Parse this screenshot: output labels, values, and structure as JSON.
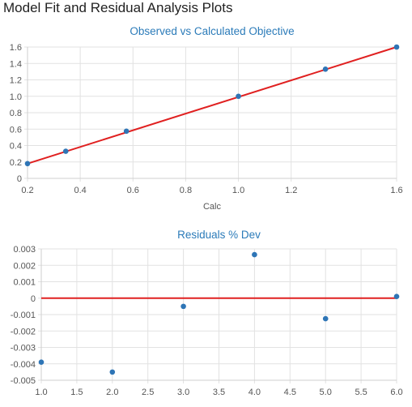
{
  "page_title": "Model Fit and Residual Analysis Plots",
  "chart_data": [
    {
      "type": "scatter",
      "title": "Observed vs Calculated Objective",
      "xlabel": "Calc",
      "ylabel": "",
      "xlim": [
        0.2,
        1.6
      ],
      "ylim": [
        0,
        1.6
      ],
      "x_ticks": [
        "0.2",
        "0.4",
        "0.6",
        "0.8",
        "1.0",
        "1.2",
        "1.6"
      ],
      "x_tick_values": [
        0.2,
        0.4,
        0.6,
        0.8,
        1.0,
        1.2,
        1.6
      ],
      "y_ticks": [
        "0",
        "0.2",
        "0.4",
        "0.6",
        "0.8",
        "1.0",
        "1.2",
        "1.4",
        "1.6"
      ],
      "y_tick_values": [
        0,
        0.2,
        0.4,
        0.6,
        0.8,
        1.0,
        1.2,
        1.4,
        1.6
      ],
      "grid": true,
      "points": [
        {
          "x": 0.2,
          "y": 0.18
        },
        {
          "x": 0.345,
          "y": 0.33
        },
        {
          "x": 0.575,
          "y": 0.575
        },
        {
          "x": 1.0,
          "y": 1.0
        },
        {
          "x": 1.33,
          "y": 1.33
        },
        {
          "x": 1.6,
          "y": 1.6
        }
      ],
      "fit_line": {
        "x": [
          0.2,
          1.6
        ],
        "y": [
          0.18,
          1.6
        ]
      },
      "colors": {
        "points": "#2e75b6",
        "line": "#e02020"
      }
    },
    {
      "type": "scatter",
      "title": "Residuals % Dev",
      "xlabel": "",
      "ylabel": "",
      "xlim": [
        1.0,
        6.0
      ],
      "ylim": [
        -0.005,
        0.003
      ],
      "x_ticks": [
        "1.0",
        "1.5",
        "2.0",
        "2.5",
        "3.0",
        "3.5",
        "4.0",
        "4.5",
        "5.0",
        "5.5",
        "6.0"
      ],
      "x_tick_values": [
        1.0,
        1.5,
        2.0,
        2.5,
        3.0,
        3.5,
        4.0,
        4.5,
        5.0,
        5.5,
        6.0
      ],
      "y_ticks": [
        "0.003",
        "0.002",
        "0.001",
        "0",
        "-0.001",
        "-0.002",
        "-0.003",
        "-0.004",
        "-0.005"
      ],
      "y_tick_values": [
        0.003,
        0.002,
        0.001,
        0,
        -0.001,
        -0.002,
        -0.003,
        -0.004,
        -0.005
      ],
      "grid": true,
      "points": [
        {
          "x": 1.0,
          "y": -0.0039
        },
        {
          "x": 2.0,
          "y": -0.0045
        },
        {
          "x": 3.0,
          "y": -0.0005
        },
        {
          "x": 4.0,
          "y": 0.00265
        },
        {
          "x": 5.0,
          "y": -0.00125
        },
        {
          "x": 6.0,
          "y": 0.0001
        }
      ],
      "reference_line": {
        "y": 0
      },
      "colors": {
        "points": "#2e75b6",
        "line": "#e02020"
      }
    }
  ]
}
